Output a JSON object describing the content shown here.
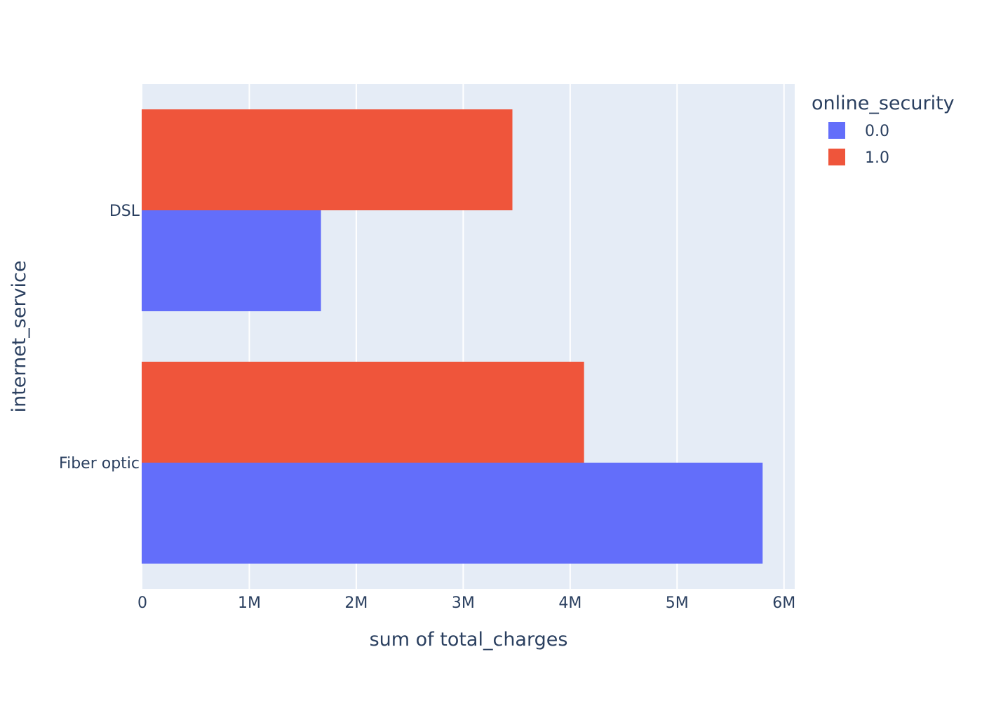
{
  "chart_data": {
    "type": "bar",
    "orientation": "horizontal",
    "barmode": "group",
    "categories": [
      "DSL",
      "Fiber optic"
    ],
    "series": [
      {
        "name": "0.0",
        "values": [
          1670000,
          5800000
        ],
        "color": "#636efa"
      },
      {
        "name": "1.0",
        "values": [
          3460000,
          4130000
        ],
        "color": "#ef553b"
      }
    ],
    "xlabel": "sum of total_charges",
    "ylabel": "internet_service",
    "xlim": [
      0,
      6100000
    ],
    "xticks": [
      0,
      1000000,
      2000000,
      3000000,
      4000000,
      5000000,
      6000000
    ],
    "xtick_labels": [
      "0",
      "1M",
      "2M",
      "3M",
      "4M",
      "5M",
      "6M"
    ],
    "grid": true,
    "legend": {
      "title": "online_security",
      "placement": "top-right"
    },
    "colors": {
      "plot_background": "#e5ecf6",
      "gridline": "#ffffff",
      "text": "#2a3f5f"
    }
  }
}
